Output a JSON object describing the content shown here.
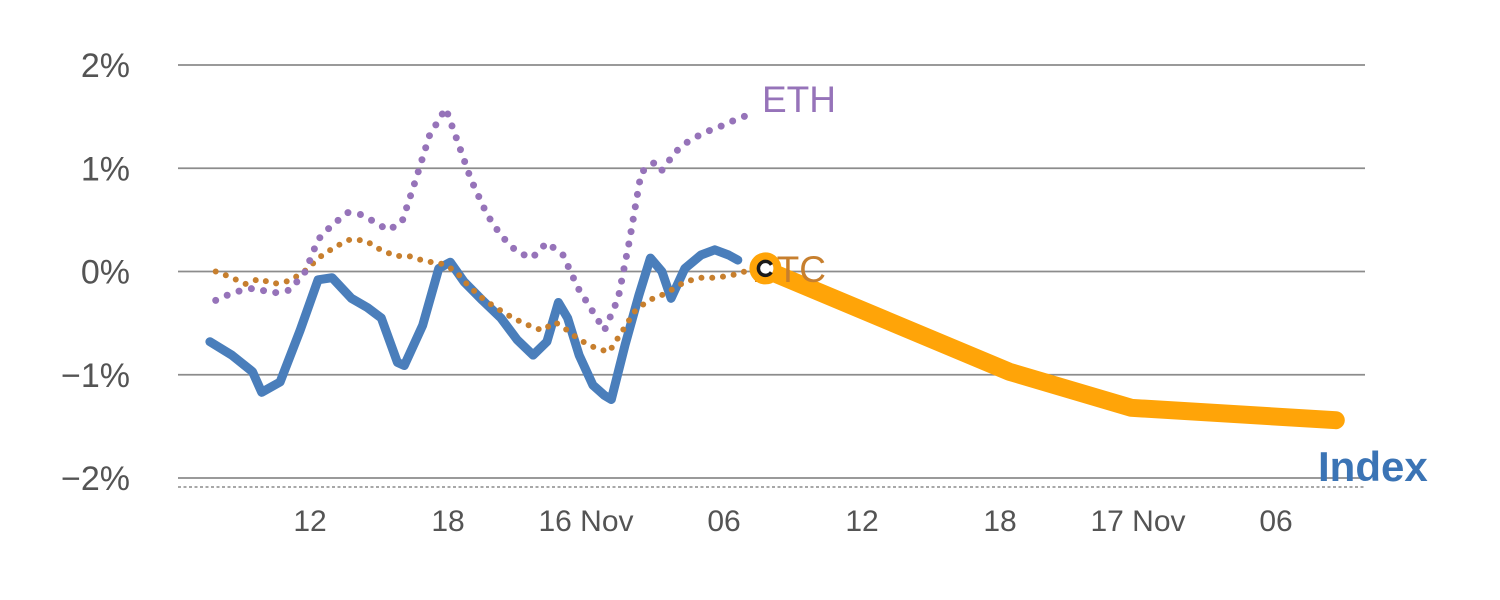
{
  "chart_data": {
    "type": "line",
    "title": "",
    "xlabel": "",
    "ylabel": "",
    "ylim": [
      -2,
      2
    ],
    "grid": "horizontal",
    "x_unit": "hours from first 12:00 tick (15 Nov 12:00)",
    "legend_position": "inline-labels",
    "labels": {
      "eth": "ETH",
      "btc": "BTC",
      "index": "Index"
    },
    "colors": {
      "index_blue": "#4a7ebb",
      "eth_purple": "#9673b9",
      "btc_orange": "#c77f2e",
      "projection_orange": "#ffa408",
      "grid_gray": "#8c8c8c",
      "tick_text_gray": "#545454",
      "index_label_blue": "#3b74b5",
      "marker_inner_black": "#1a1a1a"
    },
    "y_ticks": [
      {
        "label": "2%",
        "value": 2
      },
      {
        "label": "1%",
        "value": 1
      },
      {
        "label": "0%",
        "value": 0
      },
      {
        "label": "−1%",
        "value": -1
      },
      {
        "label": "−2%",
        "value": -2
      }
    ],
    "x_ticks": [
      {
        "label": "12",
        "t": 0
      },
      {
        "label": "18",
        "t": 6
      },
      {
        "label": "16 Nov",
        "t": 12
      },
      {
        "label": "06",
        "t": 18
      },
      {
        "label": "12",
        "t": 24
      },
      {
        "label": "18",
        "t": 30
      },
      {
        "label": "17 Nov",
        "t": 36
      },
      {
        "label": "06",
        "t": 42
      }
    ],
    "series": [
      {
        "name": "index-projection",
        "display_name": "Index projection (thick orange band)",
        "color": "#ffa408",
        "style": "solid",
        "width": 18,
        "points": [
          [
            20.0,
            0.0
          ],
          [
            30.4,
            -0.97
          ],
          [
            35.7,
            -1.32
          ],
          [
            44.6,
            -1.44
          ]
        ]
      },
      {
        "name": "index",
        "display_name": "Index",
        "color": "#4a7ebb",
        "style": "solid",
        "width": 9,
        "points": [
          [
            -4.35,
            -0.68
          ],
          [
            -3.4,
            -0.81
          ],
          [
            -2.5,
            -0.97
          ],
          [
            -2.1,
            -1.17
          ],
          [
            -1.3,
            -1.07
          ],
          [
            -0.43,
            -0.57
          ],
          [
            0.35,
            -0.08
          ],
          [
            0.96,
            -0.06
          ],
          [
            1.8,
            -0.26
          ],
          [
            2.5,
            -0.35
          ],
          [
            3.1,
            -0.45
          ],
          [
            3.8,
            -0.88
          ],
          [
            4.1,
            -0.91
          ],
          [
            4.9,
            -0.52
          ],
          [
            5.6,
            0.03
          ],
          [
            6.1,
            0.09
          ],
          [
            6.7,
            -0.1
          ],
          [
            7.5,
            -0.28
          ],
          [
            8.3,
            -0.45
          ],
          [
            9.0,
            -0.66
          ],
          [
            9.7,
            -0.81
          ],
          [
            10.3,
            -0.68
          ],
          [
            10.8,
            -0.3
          ],
          [
            11.2,
            -0.45
          ],
          [
            11.7,
            -0.81
          ],
          [
            12.3,
            -1.1
          ],
          [
            12.8,
            -1.2
          ],
          [
            13.1,
            -1.24
          ],
          [
            13.7,
            -0.71
          ],
          [
            14.3,
            -0.23
          ],
          [
            14.8,
            0.13
          ],
          [
            15.3,
            0.0
          ],
          [
            15.7,
            -0.26
          ],
          [
            16.3,
            0.03
          ],
          [
            17.0,
            0.16
          ],
          [
            17.6,
            0.21
          ],
          [
            18.2,
            0.16
          ],
          [
            18.6,
            0.11
          ]
        ]
      },
      {
        "name": "btc",
        "display_name": "BTC",
        "color": "#c77f2e",
        "style": "dotted",
        "width": 6,
        "points": [
          [
            -4.1,
            0.0
          ],
          [
            -3.5,
            -0.05
          ],
          [
            -2.8,
            -0.12
          ],
          [
            -2.2,
            -0.07
          ],
          [
            -1.6,
            -0.12
          ],
          [
            -0.87,
            -0.09
          ],
          [
            -0.2,
            0.01
          ],
          [
            0.43,
            0.14
          ],
          [
            1.1,
            0.24
          ],
          [
            1.74,
            0.31
          ],
          [
            2.4,
            0.3
          ],
          [
            3.0,
            0.22
          ],
          [
            3.7,
            0.15
          ],
          [
            4.3,
            0.15
          ],
          [
            5.0,
            0.1
          ],
          [
            5.65,
            0.08
          ],
          [
            6.3,
            0.01
          ],
          [
            6.9,
            -0.14
          ],
          [
            7.6,
            -0.28
          ],
          [
            8.3,
            -0.38
          ],
          [
            8.9,
            -0.46
          ],
          [
            9.6,
            -0.53
          ],
          [
            10.1,
            -0.57
          ],
          [
            10.65,
            -0.49
          ],
          [
            11.2,
            -0.57
          ],
          [
            11.7,
            -0.66
          ],
          [
            12.4,
            -0.74
          ],
          [
            13.0,
            -0.78
          ],
          [
            13.6,
            -0.57
          ],
          [
            14.1,
            -0.39
          ],
          [
            14.7,
            -0.28
          ],
          [
            15.2,
            -0.24
          ],
          [
            15.7,
            -0.18
          ],
          [
            16.3,
            -0.1
          ],
          [
            17.0,
            -0.06
          ],
          [
            17.6,
            -0.06
          ],
          [
            18.3,
            -0.04
          ],
          [
            18.9,
            0.0
          ],
          [
            19.6,
            0.02
          ]
        ]
      },
      {
        "name": "eth",
        "display_name": "ETH",
        "color": "#9673b9",
        "style": "dotted",
        "width": 7,
        "points": [
          [
            -4.1,
            -0.28
          ],
          [
            -3.3,
            -0.2
          ],
          [
            -2.4,
            -0.16
          ],
          [
            -1.65,
            -0.21
          ],
          [
            -0.87,
            -0.18
          ],
          [
            -0.2,
            0.0
          ],
          [
            0.35,
            0.31
          ],
          [
            0.96,
            0.45
          ],
          [
            1.65,
            0.57
          ],
          [
            2.26,
            0.55
          ],
          [
            2.8,
            0.48
          ],
          [
            3.4,
            0.4
          ],
          [
            4.0,
            0.48
          ],
          [
            4.6,
            0.89
          ],
          [
            5.2,
            1.32
          ],
          [
            5.9,
            1.58
          ],
          [
            6.4,
            1.27
          ],
          [
            7.0,
            0.89
          ],
          [
            7.7,
            0.55
          ],
          [
            8.3,
            0.35
          ],
          [
            9.0,
            0.19
          ],
          [
            9.65,
            0.13
          ],
          [
            10.3,
            0.28
          ],
          [
            11.0,
            0.16
          ],
          [
            11.65,
            -0.16
          ],
          [
            12.3,
            -0.39
          ],
          [
            12.8,
            -0.57
          ],
          [
            13.4,
            -0.26
          ],
          [
            13.9,
            0.31
          ],
          [
            14.4,
            0.96
          ],
          [
            15.0,
            1.06
          ],
          [
            15.3,
            0.98
          ],
          [
            15.9,
            1.16
          ],
          [
            16.5,
            1.27
          ],
          [
            17.2,
            1.35
          ],
          [
            17.9,
            1.41
          ],
          [
            18.7,
            1.49
          ],
          [
            19.3,
            1.53
          ]
        ]
      }
    ],
    "marker": {
      "name": "btc-end-marker",
      "t": 19.8,
      "pct": 0.03,
      "color": "#ffa408"
    }
  }
}
